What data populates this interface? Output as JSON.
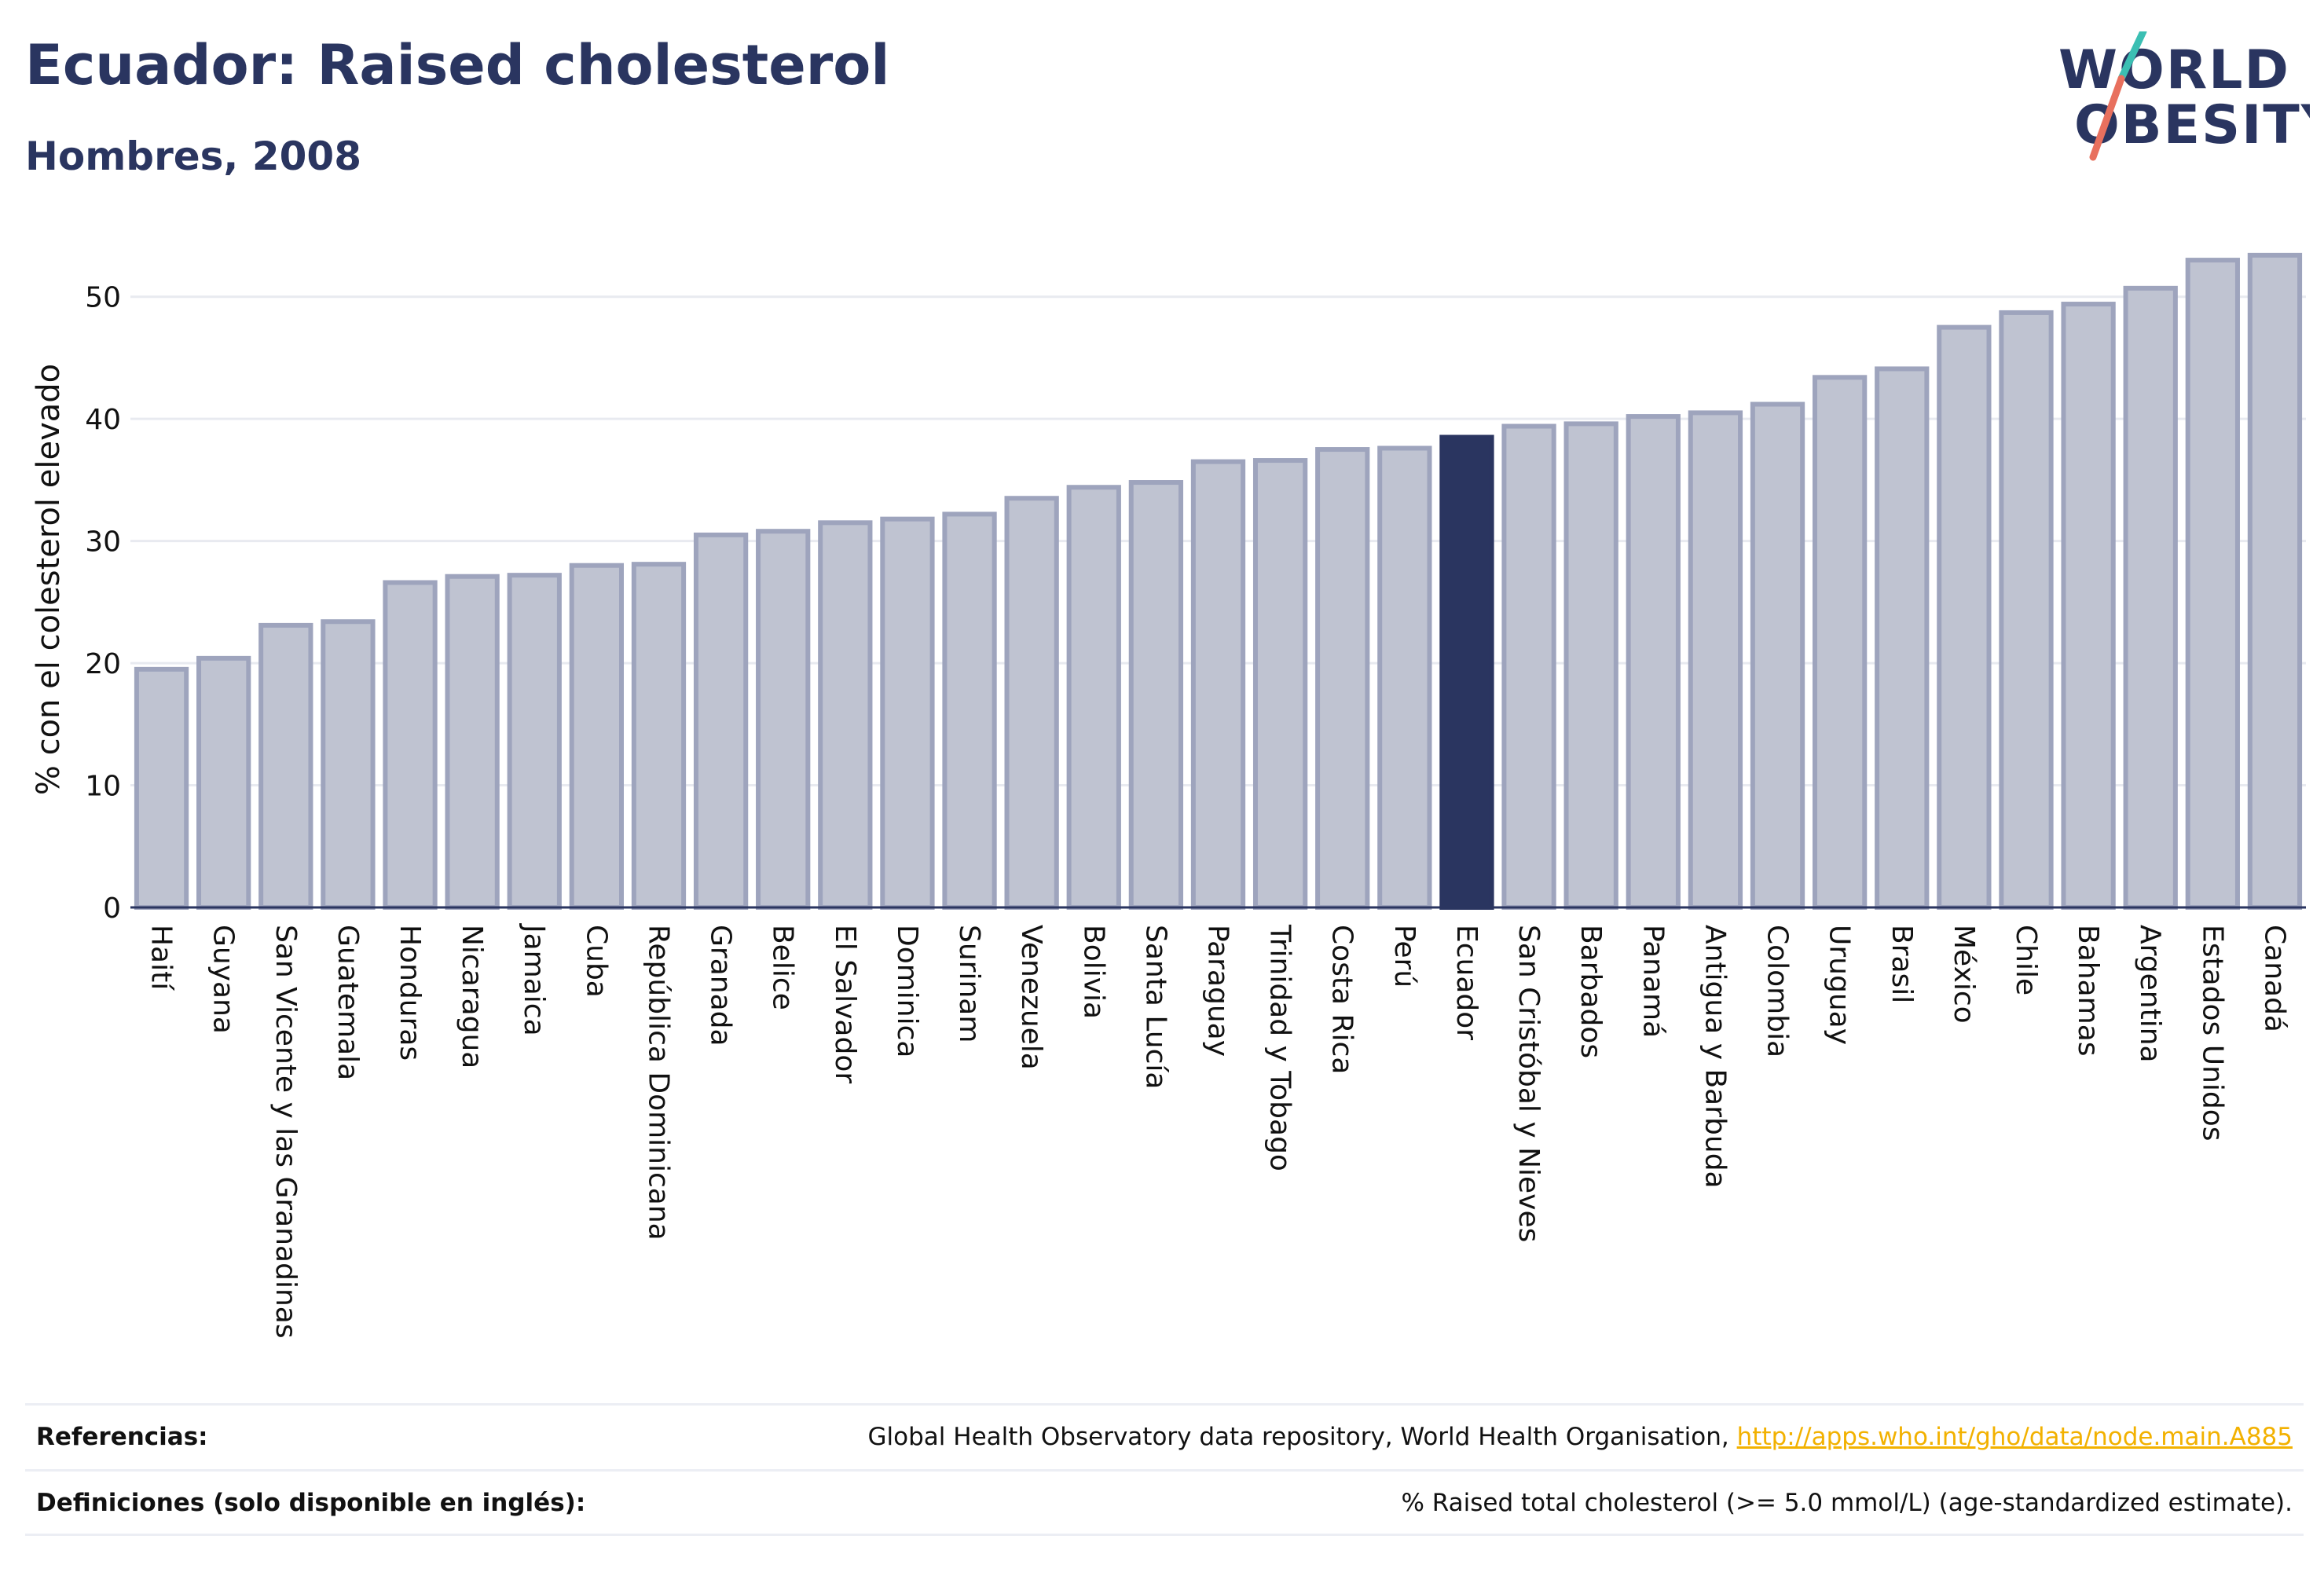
{
  "header": {
    "title": "Ecuador: Raised cholesterol",
    "subtitle": "Hombres, 2008"
  },
  "logo": {
    "line1": "WORLD",
    "line2": "OBESITY",
    "colors": {
      "text": "#2a3560",
      "slash_top": "#3bbfb3",
      "slash_bottom": "#e8705e"
    }
  },
  "footer": {
    "references_label": "Referencias:",
    "references_text": "Global Health Observatory data repository, World Health Organisation, ",
    "references_link": "http://apps.who.int/gho/data/node.main.A885",
    "definitions_label": "Definiciones (solo disponible en inglés):",
    "definitions_text": "% Raised total cholesterol (>= 5.0 mmol/L) (age-standardized estimate)."
  },
  "colors": {
    "bar": "#bfc3d1",
    "bar_stroke": "#9ea4bd",
    "highlight": "#2a3560",
    "grid": "#e8eaf0",
    "axis": "#2a3560"
  },
  "chart_data": {
    "type": "bar",
    "title": "Ecuador: Raised cholesterol",
    "subtitle": "Hombres, 2008",
    "ylabel": "% con el colesterol elevado",
    "xlabel": "",
    "ylim": [
      0,
      55
    ],
    "yticks": [
      0,
      10,
      20,
      30,
      40,
      50
    ],
    "grid": true,
    "highlight": "Ecuador",
    "categories": [
      "Haití",
      "Guyana",
      "San Vicente y las Granadinas",
      "Guatemala",
      "Honduras",
      "Nicaragua",
      "Jamaica",
      "Cuba",
      "República Dominicana",
      "Granada",
      "Belice",
      "El Salvador",
      "Dominica",
      "Surinam",
      "Venezuela",
      "Bolivia",
      "Santa Lucía",
      "Paraguay",
      "Trinidad y Tobago",
      "Costa Rica",
      "Perú",
      "Ecuador",
      "San Cristóbal y Nieves",
      "Barbados",
      "Panamá",
      "Antigua y Barbuda",
      "Colombia",
      "Uruguay",
      "Brasil",
      "México",
      "Chile",
      "Bahamas",
      "Argentina",
      "Estados Unidos",
      "Canadá"
    ],
    "values": [
      19.5,
      20.4,
      23.1,
      23.4,
      26.6,
      27.1,
      27.2,
      28.0,
      28.1,
      30.5,
      30.8,
      31.5,
      31.8,
      32.2,
      33.5,
      34.4,
      34.8,
      36.5,
      36.6,
      37.5,
      37.6,
      38.5,
      39.4,
      39.6,
      40.2,
      40.5,
      41.2,
      43.4,
      44.1,
      47.5,
      48.7,
      49.4,
      50.7,
      53.0,
      53.4
    ]
  }
}
